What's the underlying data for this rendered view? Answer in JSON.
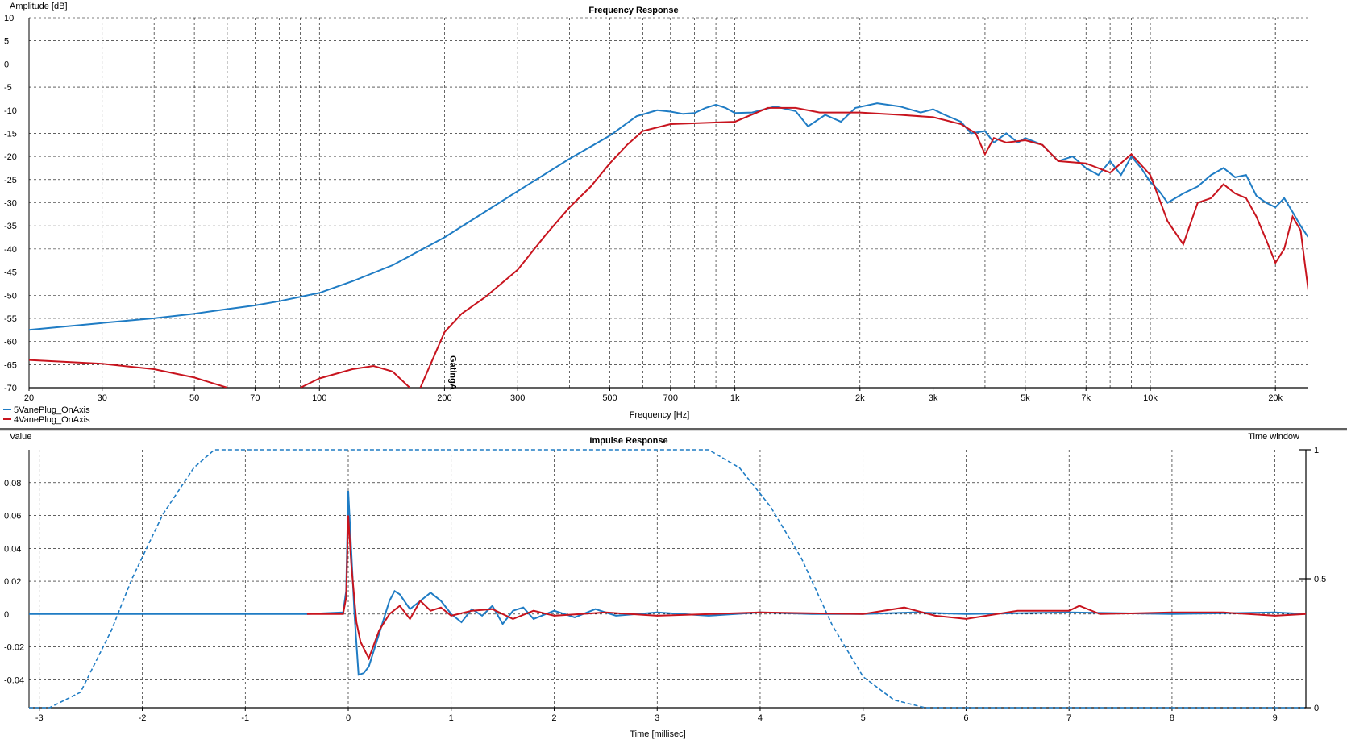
{
  "chart_data": [
    {
      "type": "line",
      "title": "Frequency Response",
      "xlabel": "Frequency [Hz]",
      "ylabel": "Amplitude [dB]",
      "xscale": "log",
      "xlim": [
        20,
        24000
      ],
      "ylim": [
        -70,
        10
      ],
      "grid": true,
      "legend_position": "bottom-left",
      "x_ticks": [
        20,
        30,
        50,
        70,
        100,
        200,
        300,
        500,
        700,
        1000,
        2000,
        3000,
        5000,
        7000,
        10000,
        20000
      ],
      "x_tick_labels": [
        "20",
        "30",
        "50",
        "70",
        "100",
        "200",
        "300",
        "500",
        "700",
        "1k",
        "2k",
        "3k",
        "5k",
        "7k",
        "10k",
        "20k"
      ],
      "y_ticks": [
        10,
        5,
        0,
        -5,
        -10,
        -15,
        -20,
        -25,
        -30,
        -35,
        -40,
        -45,
        -50,
        -55,
        -60,
        -65,
        -70
      ],
      "y_tick_labels": [
        "10",
        "5",
        "0",
        "-5",
        "-10",
        "-15",
        "-20",
        "-25",
        "-30",
        "-35",
        "-40",
        "-45",
        "-50",
        "-55",
        "-60",
        "-65",
        "-70"
      ],
      "annotation": {
        "text": "GatingA",
        "x": 210
      },
      "series": [
        {
          "name": "5VanePlug_OnAxis",
          "color": "#1f7cc4",
          "points": [
            [
              20,
              -57.5
            ],
            [
              30,
              -56
            ],
            [
              40,
              -55
            ],
            [
              50,
              -54
            ],
            [
              60,
              -53
            ],
            [
              70,
              -52.2
            ],
            [
              80,
              -51.3
            ],
            [
              100,
              -49.5
            ],
            [
              120,
              -47
            ],
            [
              150,
              -43.5
            ],
            [
              200,
              -37.5
            ],
            [
              250,
              -32
            ],
            [
              300,
              -27.5
            ],
            [
              400,
              -20.5
            ],
            [
              500,
              -15.5
            ],
            [
              580,
              -11.3
            ],
            [
              650,
              -10
            ],
            [
              700,
              -10.3
            ],
            [
              750,
              -10.8
            ],
            [
              800,
              -10.6
            ],
            [
              850,
              -9.5
            ],
            [
              900,
              -8.8
            ],
            [
              950,
              -9.5
            ],
            [
              1000,
              -10.6
            ],
            [
              1100,
              -10.5
            ],
            [
              1250,
              -9.2
            ],
            [
              1400,
              -10.2
            ],
            [
              1500,
              -13.5
            ],
            [
              1650,
              -11
            ],
            [
              1800,
              -12.5
            ],
            [
              1950,
              -9.5
            ],
            [
              2200,
              -8.5
            ],
            [
              2500,
              -9.2
            ],
            [
              2800,
              -10.5
            ],
            [
              3000,
              -9.8
            ],
            [
              3200,
              -11
            ],
            [
              3500,
              -12.5
            ],
            [
              3700,
              -15
            ],
            [
              4000,
              -14.5
            ],
            [
              4200,
              -17
            ],
            [
              4500,
              -15
            ],
            [
              4800,
              -17
            ],
            [
              5000,
              -16
            ],
            [
              5500,
              -17.5
            ],
            [
              6000,
              -21
            ],
            [
              6500,
              -20
            ],
            [
              7000,
              -22.5
            ],
            [
              7500,
              -24
            ],
            [
              8000,
              -21
            ],
            [
              8500,
              -24
            ],
            [
              9000,
              -20
            ],
            [
              9500,
              -22.5
            ],
            [
              10000,
              -25.5
            ],
            [
              10500,
              -27.5
            ],
            [
              11000,
              -30
            ],
            [
              12000,
              -28
            ],
            [
              13000,
              -26.5
            ],
            [
              14000,
              -24
            ],
            [
              15000,
              -22.5
            ],
            [
              16000,
              -24.5
            ],
            [
              17000,
              -24
            ],
            [
              18000,
              -28.5
            ],
            [
              19000,
              -30
            ],
            [
              20000,
              -31
            ],
            [
              21000,
              -29
            ],
            [
              22000,
              -32
            ],
            [
              23000,
              -35
            ],
            [
              24000,
              -37.5
            ]
          ]
        },
        {
          "name": "4VanePlug_OnAxis",
          "color": "#c8141e",
          "points": [
            [
              20,
              -64
            ],
            [
              30,
              -64.8
            ],
            [
              40,
              -66
            ],
            [
              50,
              -67.8
            ],
            [
              60,
              -70
            ],
            [
              null,
              null
            ],
            [
              90,
              -70
            ],
            [
              100,
              -68
            ],
            [
              120,
              -66
            ],
            [
              135,
              -65.3
            ],
            [
              150,
              -66.5
            ],
            [
              165,
              -70
            ],
            [
              null,
              null
            ],
            [
              175,
              -70
            ],
            [
              185,
              -65
            ],
            [
              200,
              -58
            ],
            [
              220,
              -54
            ],
            [
              250,
              -50.5
            ],
            [
              300,
              -44.5
            ],
            [
              350,
              -37
            ],
            [
              400,
              -31
            ],
            [
              450,
              -26.5
            ],
            [
              500,
              -21.5
            ],
            [
              550,
              -17.5
            ],
            [
              600,
              -14.5
            ],
            [
              700,
              -13
            ],
            [
              1000,
              -12.5
            ],
            [
              1200,
              -9.5
            ],
            [
              1400,
              -9.5
            ],
            [
              1600,
              -10.5
            ],
            [
              2000,
              -10.5
            ],
            [
              2500,
              -11
            ],
            [
              3000,
              -11.5
            ],
            [
              3500,
              -13
            ],
            [
              3800,
              -15
            ],
            [
              4000,
              -19.5
            ],
            [
              4200,
              -16
            ],
            [
              4500,
              -17
            ],
            [
              5000,
              -16.5
            ],
            [
              5500,
              -17.5
            ],
            [
              6000,
              -21
            ],
            [
              7000,
              -21.5
            ],
            [
              8000,
              -23.5
            ],
            [
              9000,
              -19.5
            ],
            [
              10000,
              -24
            ],
            [
              11000,
              -34
            ],
            [
              12000,
              -39
            ],
            [
              13000,
              -30
            ],
            [
              14000,
              -29
            ],
            [
              15000,
              -26
            ],
            [
              16000,
              -28
            ],
            [
              17000,
              -29
            ],
            [
              18000,
              -33
            ],
            [
              19000,
              -38
            ],
            [
              20000,
              -43
            ],
            [
              21000,
              -40
            ],
            [
              22000,
              -33
            ],
            [
              23000,
              -36
            ],
            [
              24000,
              -49
            ]
          ]
        }
      ]
    },
    {
      "type": "line",
      "title": "Impulse Response",
      "xlabel": "Time [millisec]",
      "ylabel": "Value",
      "y2label": "Time window",
      "xlim": [
        -3.1,
        9.3
      ],
      "ylim": [
        -0.057,
        0.1
      ],
      "y2lim": [
        0,
        1
      ],
      "grid": true,
      "x_ticks": [
        -3,
        -2,
        -1,
        0,
        1,
        2,
        3,
        4,
        5,
        6,
        7,
        8,
        9
      ],
      "x_tick_labels": [
        "-3",
        "-2",
        "-1",
        "0",
        "1",
        "2",
        "3",
        "4",
        "5",
        "6",
        "7",
        "8",
        "9"
      ],
      "y_ticks": [
        0.08,
        0.06,
        0.04,
        0.02,
        0,
        -0.02,
        -0.04
      ],
      "y_tick_labels": [
        "0.08",
        "0.06",
        "0.04",
        "0.02",
        "0",
        "-0.02",
        "-0.04"
      ],
      "y2_ticks": [
        1,
        0.5,
        0
      ],
      "y2_tick_labels": [
        "1",
        "0.5",
        "0"
      ],
      "window": {
        "axis": "right",
        "style": "dashed",
        "color": "#1f7cc4",
        "points": [
          [
            -3.1,
            0
          ],
          [
            -2.9,
            0
          ],
          [
            -2.6,
            0.06
          ],
          [
            -2.3,
            0.3
          ],
          [
            -2.1,
            0.5
          ],
          [
            -1.8,
            0.75
          ],
          [
            -1.5,
            0.93
          ],
          [
            -1.3,
            1
          ],
          [
            3.5,
            1
          ],
          [
            3.8,
            0.93
          ],
          [
            4.1,
            0.78
          ],
          [
            4.4,
            0.58
          ],
          [
            4.7,
            0.32
          ],
          [
            5.0,
            0.12
          ],
          [
            5.3,
            0.03
          ],
          [
            5.6,
            0.0
          ],
          [
            9.3,
            0
          ]
        ]
      },
      "series": [
        {
          "name": "5VanePlug_OnAxis",
          "color": "#1f7cc4",
          "points": [
            [
              -3.1,
              0
            ],
            [
              -0.4,
              0
            ],
            [
              -0.05,
              0.001
            ],
            [
              -0.02,
              0.014
            ],
            [
              0,
              0.075
            ],
            [
              0.02,
              0.05
            ],
            [
              0.06,
              0.0
            ],
            [
              0.1,
              -0.037
            ],
            [
              0.15,
              -0.036
            ],
            [
              0.2,
              -0.032
            ],
            [
              0.3,
              -0.012
            ],
            [
              0.4,
              0.008
            ],
            [
              0.45,
              0.014
            ],
            [
              0.5,
              0.012
            ],
            [
              0.6,
              0.003
            ],
            [
              0.7,
              0.008
            ],
            [
              0.8,
              0.013
            ],
            [
              0.9,
              0.008
            ],
            [
              1.0,
              0.0
            ],
            [
              1.1,
              -0.005
            ],
            [
              1.2,
              0.003
            ],
            [
              1.3,
              -0.001
            ],
            [
              1.4,
              0.005
            ],
            [
              1.5,
              -0.006
            ],
            [
              1.6,
              0.002
            ],
            [
              1.7,
              0.004
            ],
            [
              1.8,
              -0.003
            ],
            [
              2.0,
              0.002
            ],
            [
              2.2,
              -0.002
            ],
            [
              2.4,
              0.003
            ],
            [
              2.6,
              -0.001
            ],
            [
              3.0,
              0.001
            ],
            [
              3.5,
              -0.001
            ],
            [
              4.0,
              0.001
            ],
            [
              4.5,
              0
            ],
            [
              5.0,
              0
            ],
            [
              5.5,
              0.001
            ],
            [
              6.0,
              0
            ],
            [
              7.0,
              0.001
            ],
            [
              8.0,
              0
            ],
            [
              9.0,
              0.001
            ],
            [
              9.3,
              0
            ]
          ]
        },
        {
          "name": "4VanePlug_OnAxis",
          "color": "#c8141e",
          "points": [
            [
              -0.4,
              0
            ],
            [
              -0.05,
              0.0
            ],
            [
              -0.02,
              0.01
            ],
            [
              0,
              0.06
            ],
            [
              0.03,
              0.03
            ],
            [
              0.08,
              -0.005
            ],
            [
              0.12,
              -0.017
            ],
            [
              0.2,
              -0.027
            ],
            [
              0.3,
              -0.01
            ],
            [
              0.4,
              0.0
            ],
            [
              0.5,
              0.005
            ],
            [
              0.6,
              -0.003
            ],
            [
              0.7,
              0.008
            ],
            [
              0.8,
              0.002
            ],
            [
              0.9,
              0.004
            ],
            [
              1.0,
              -0.001
            ],
            [
              1.2,
              0.002
            ],
            [
              1.4,
              0.003
            ],
            [
              1.6,
              -0.003
            ],
            [
              1.8,
              0.002
            ],
            [
              2.0,
              -0.001
            ],
            [
              2.5,
              0.001
            ],
            [
              3.0,
              -0.001
            ],
            [
              4.0,
              0.001
            ],
            [
              5.0,
              0
            ],
            [
              5.4,
              0.004
            ],
            [
              5.7,
              -0.001
            ],
            [
              6.0,
              -0.003
            ],
            [
              6.5,
              0.002
            ],
            [
              7.0,
              0.002
            ],
            [
              7.1,
              0.005
            ],
            [
              7.3,
              0.0
            ],
            [
              8.0,
              0.001
            ],
            [
              8.5,
              0.001
            ],
            [
              9.0,
              -0.001
            ],
            [
              9.3,
              0
            ]
          ]
        }
      ]
    }
  ]
}
